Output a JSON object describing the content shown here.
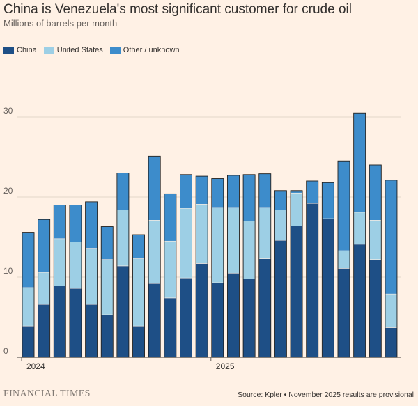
{
  "chart_data": {
    "type": "bar",
    "stacked": true,
    "title": "China is Venezuela's most significant customer for crude oil",
    "subtitle": "Millions of barrels per month",
    "ylabel": "Millions of barrels per month",
    "xlabel": "",
    "ylim": [
      0,
      32
    ],
    "yticks": [
      0,
      10,
      20,
      30
    ],
    "x_tick_labels": [
      {
        "label": "2024",
        "month_index": 0
      },
      {
        "label": "2025",
        "month_index": 12
      }
    ],
    "categories": [
      "Jan 2024",
      "Feb 2024",
      "Mar 2024",
      "Apr 2024",
      "May 2024",
      "Jun 2024",
      "Jul 2024",
      "Aug 2024",
      "Sep 2024",
      "Oct 2024",
      "Nov 2024",
      "Dec 2024",
      "Jan 2025",
      "Feb 2025",
      "Mar 2025",
      "Apr 2025",
      "May 2025",
      "Jun 2025",
      "Jul 2025",
      "Aug 2025",
      "Sep 2025",
      "Oct 2025",
      "Nov 2025",
      "Dec 2025"
    ],
    "series": [
      {
        "name": "China",
        "color": "#1e4f86",
        "values": [
          3.9,
          6.6,
          8.9,
          8.6,
          6.6,
          5.3,
          11.4,
          3.9,
          9.2,
          7.4,
          9.9,
          11.7,
          9.3,
          10.5,
          9.8,
          12.3,
          14.6,
          16.4,
          19.2,
          17.3,
          11.1,
          14.1,
          12.2,
          3.7
        ]
      },
      {
        "name": "United States",
        "color": "#9dcfe5",
        "values": [
          4.8,
          4.0,
          5.9,
          5.8,
          7.0,
          6.9,
          7.0,
          8.4,
          7.9,
          7.1,
          8.7,
          7.4,
          9.4,
          8.2,
          7.2,
          6.4,
          3.8,
          4.1,
          0,
          0,
          2.2,
          4.0,
          4.9,
          4.2
        ]
      },
      {
        "name": "Other / unknown",
        "color": "#3d8ccb",
        "values": [
          6.9,
          6.6,
          4.2,
          4.6,
          5.8,
          4.1,
          4.6,
          3.0,
          8.0,
          5.9,
          4.2,
          3.5,
          3.6,
          4.0,
          5.8,
          4.2,
          2.4,
          0.3,
          2.8,
          4.5,
          11.2,
          12.4,
          6.9,
          14.2
        ]
      }
    ]
  },
  "footer": {
    "logo": "FINANCIAL TIMES",
    "source": "Source: Kpler • November 2025 results are provisional"
  }
}
